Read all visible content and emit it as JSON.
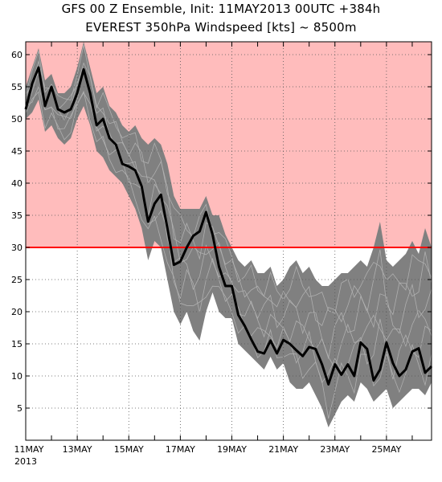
{
  "chart_data": {
    "type": "line",
    "title": "GFS 00 Z Ensemble, Init: 11MAY2013  00UTC +384h",
    "subtitle": "EVEREST 350hPa Windspeed [kts] ~ 8500m",
    "xlabel": "",
    "ylabel": "",
    "x_start": "2013-05-11",
    "x_end": "2013-05-26T18:00",
    "x_tick_labels": [
      "11MAY",
      "13MAY",
      "15MAY",
      "17MAY",
      "19MAY",
      "21MAY",
      "23MAY",
      "25MAY"
    ],
    "x_year_label": "2013",
    "ylim": [
      0,
      62
    ],
    "y_ticks": [
      5,
      10,
      15,
      20,
      25,
      30,
      35,
      40,
      45,
      50,
      55,
      60
    ],
    "grid": true,
    "threshold": {
      "value": 30,
      "color": "#ff0000",
      "shade_above": "#ffbcbc"
    },
    "colors": {
      "spread": "#808080",
      "members": "#b4b4b4",
      "mean": "#000000"
    },
    "series": [
      {
        "role": "ensemble-mean",
        "x": [
          "2013-05-11T00:00",
          "2013-05-11T06:00",
          "2013-05-11T12:00",
          "2013-05-11T18:00",
          "2013-05-12T00:00",
          "2013-05-12T06:00",
          "2013-05-12T12:00",
          "2013-05-12T18:00",
          "2013-05-13T00:00",
          "2013-05-13T06:00",
          "2013-05-13T12:00",
          "2013-05-13T18:00",
          "2013-05-14T00:00",
          "2013-05-14T06:00",
          "2013-05-14T12:00",
          "2013-05-14T18:00",
          "2013-05-15T00:00",
          "2013-05-15T06:00",
          "2013-05-15T12:00",
          "2013-05-15T18:00",
          "2013-05-16T00:00",
          "2013-05-16T06:00",
          "2013-05-16T12:00",
          "2013-05-16T18:00",
          "2013-05-17T00:00",
          "2013-05-17T06:00",
          "2013-05-17T12:00",
          "2013-05-17T18:00",
          "2013-05-18T00:00",
          "2013-05-18T06:00",
          "2013-05-18T12:00",
          "2013-05-18T18:00",
          "2013-05-19T00:00",
          "2013-05-19T06:00",
          "2013-05-19T12:00",
          "2013-05-19T18:00",
          "2013-05-20T00:00",
          "2013-05-20T06:00",
          "2013-05-20T12:00",
          "2013-05-20T18:00",
          "2013-05-21T00:00",
          "2013-05-21T06:00",
          "2013-05-21T12:00",
          "2013-05-21T18:00",
          "2013-05-22T00:00",
          "2013-05-22T06:00",
          "2013-05-22T12:00",
          "2013-05-22T18:00",
          "2013-05-23T00:00",
          "2013-05-23T06:00",
          "2013-05-23T12:00",
          "2013-05-23T18:00",
          "2013-05-24T00:00",
          "2013-05-24T06:00",
          "2013-05-24T12:00",
          "2013-05-24T18:00",
          "2013-05-25T00:00",
          "2013-05-25T06:00",
          "2013-05-25T12:00",
          "2013-05-25T18:00",
          "2013-05-26T00:00",
          "2013-05-26T06:00",
          "2013-05-26T12:00",
          "2013-05-26T18:00"
        ],
        "y": [
          51.5,
          55.5,
          58,
          52,
          55,
          51.5,
          51,
          51.5,
          54,
          57.7,
          54,
          49,
          50,
          47,
          46,
          43,
          42.6,
          42,
          39.5,
          34,
          36.8,
          38.2,
          33,
          27.3,
          27.8,
          30,
          31.8,
          32.5,
          35.5,
          32,
          27,
          24,
          24,
          19.5,
          17.8,
          15.7,
          13.8,
          13.5,
          15.5,
          13.5,
          15.6,
          15,
          14,
          13.1,
          14.5,
          14.2,
          11.8,
          8.7,
          11.8,
          10.2,
          11.8,
          10,
          15.2,
          14.2,
          9.3,
          11,
          15.2,
          12,
          10,
          11,
          13.8,
          14.3,
          10.5,
          11.5
        ]
      },
      {
        "role": "ensemble-max",
        "y": [
          55,
          58,
          61,
          56,
          57,
          54,
          54,
          55,
          58,
          62,
          58,
          54,
          55,
          52,
          51,
          49,
          48,
          49,
          47,
          46,
          47,
          46,
          43,
          38,
          36,
          36,
          36,
          36,
          38,
          35,
          35,
          32,
          30,
          28,
          27,
          28,
          26,
          26,
          27,
          24,
          25,
          27,
          28,
          26,
          27,
          25,
          24,
          24,
          25,
          26,
          26,
          27,
          28,
          27,
          30,
          34,
          28,
          27,
          28,
          29,
          31,
          29,
          33,
          30
        ]
      },
      {
        "role": "ensemble-min",
        "y": [
          50,
          51,
          53,
          48,
          49,
          47,
          46,
          47,
          50,
          52,
          49,
          45,
          44,
          42,
          41,
          40,
          38,
          36,
          33,
          28,
          31,
          30,
          25,
          20,
          18,
          20,
          17,
          15.5,
          20,
          23,
          20,
          19,
          19,
          15,
          14,
          13,
          12,
          11,
          13,
          11,
          12,
          9,
          8,
          8,
          9,
          7,
          5,
          2,
          4,
          6,
          7,
          6,
          9,
          8,
          6,
          7,
          8,
          5,
          6,
          7,
          8,
          8,
          7,
          9
        ]
      }
    ]
  }
}
